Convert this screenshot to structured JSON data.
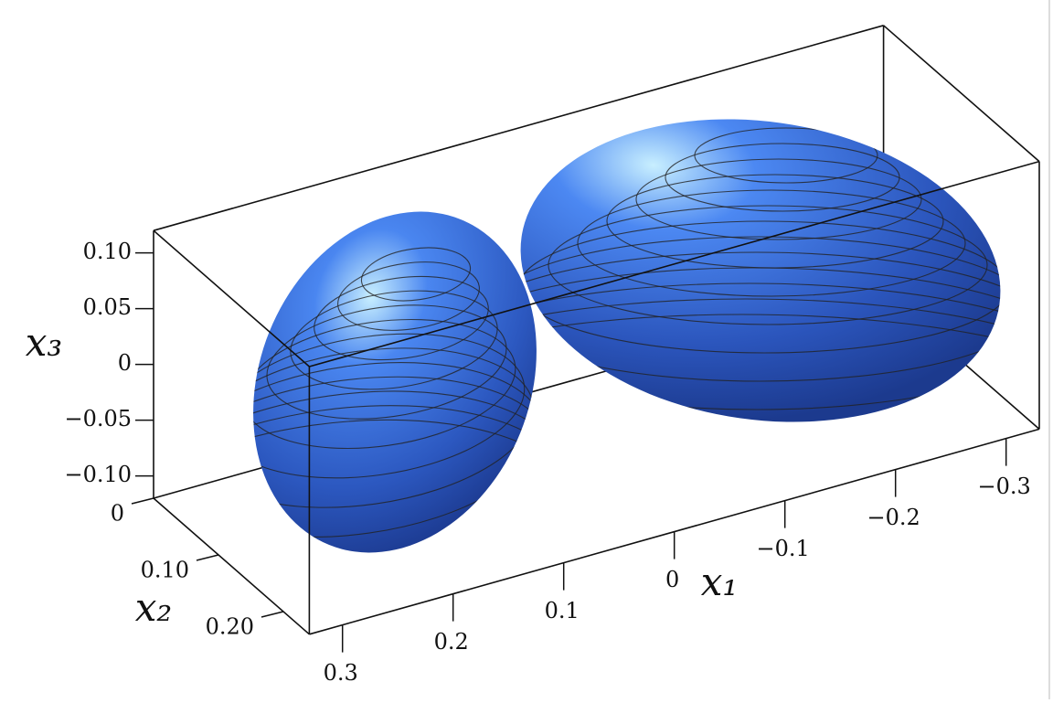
{
  "chart_data": {
    "type": "surface3d",
    "xlabel": "x₁",
    "ylabel": "x₂",
    "zlabel": "x₃",
    "xlim": [
      -0.33,
      0.33
    ],
    "xticks": [
      {
        "value": -0.3,
        "label": "−0.3"
      },
      {
        "value": -0.2,
        "label": "−0.2"
      },
      {
        "value": -0.1,
        "label": "−0.1"
      },
      0,
      0.1,
      0.2,
      0.3
    ],
    "ylim": [
      0,
      0.24
    ],
    "yticks": [
      0,
      {
        "value": 0.1,
        "label": "0.10"
      },
      {
        "value": 0.2,
        "label": "0.20"
      }
    ],
    "zlim": [
      -0.12,
      0.12
    ],
    "zticks": [
      {
        "value": -0.1,
        "label": "−0.10"
      },
      {
        "value": -0.05,
        "label": "−0.05"
      },
      0,
      0.05,
      {
        "value": 0.1,
        "label": "0.10"
      }
    ]
  }
}
